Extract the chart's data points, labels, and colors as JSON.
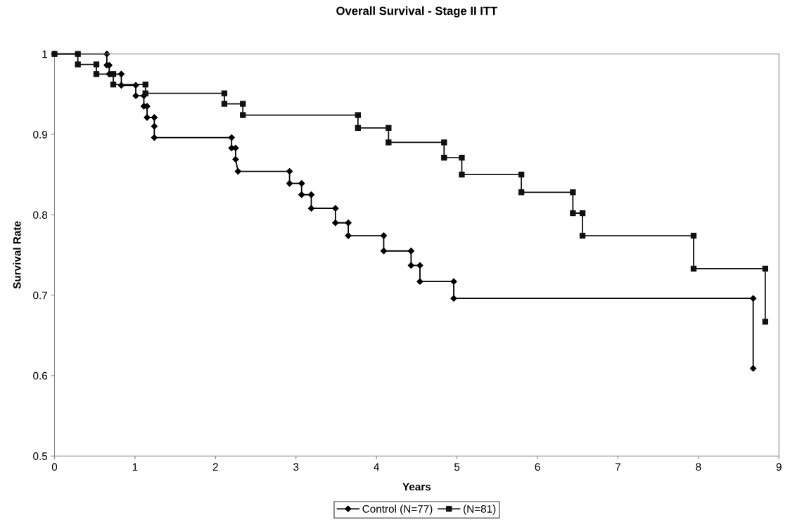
{
  "chart_data": {
    "type": "line",
    "title": "Overall Survival - Stage II ITT",
    "xlabel": "Years",
    "ylabel": "Survival Rate",
    "xlim": [
      0,
      9
    ],
    "xticks": [
      0,
      1,
      2,
      3,
      4,
      5,
      6,
      7,
      8,
      9
    ],
    "ylim": [
      0.5,
      1
    ],
    "yticks": [
      0.5,
      0.6,
      0.7,
      0.8,
      0.9,
      1
    ],
    "grid": false,
    "legend": "bottom",
    "line_style": "solid",
    "series": [
      {
        "name": "Control (N=77)",
        "color": "#000000",
        "marker": "diamond",
        "x": [
          0,
          0.65,
          0.65,
          0.68,
          0.68,
          0.83,
          0.83,
          1.01,
          1.01,
          1.11,
          1.11,
          1.15,
          1.15,
          1.24,
          1.24,
          1.24,
          2.2,
          2.2,
          2.25,
          2.25,
          2.28,
          2.92,
          2.92,
          3.07,
          3.07,
          3.19,
          3.19,
          3.49,
          3.49,
          3.65,
          3.65,
          4.09,
          4.09,
          4.43,
          4.43,
          4.54,
          4.54,
          4.96,
          4.96,
          8.68,
          8.68
        ],
        "values": [
          1,
          1,
          0.986,
          0.986,
          0.975,
          0.975,
          0.961,
          0.961,
          0.948,
          0.948,
          0.935,
          0.935,
          0.921,
          0.921,
          0.91,
          0.896,
          0.896,
          0.883,
          0.883,
          0.869,
          0.854,
          0.854,
          0.839,
          0.839,
          0.825,
          0.825,
          0.808,
          0.808,
          0.79,
          0.79,
          0.774,
          0.774,
          0.755,
          0.755,
          0.737,
          0.737,
          0.717,
          0.717,
          0.696,
          0.696,
          0.609
        ]
      },
      {
        "name": "(N=81)",
        "color": "#111111",
        "marker": "square",
        "x": [
          0,
          0.29,
          0.29,
          0.52,
          0.52,
          0.73,
          0.73,
          1.13,
          1.13,
          2.11,
          2.11,
          2.34,
          2.34,
          3.77,
          3.77,
          4.15,
          4.15,
          4.84,
          4.84,
          5.06,
          5.06,
          5.8,
          5.8,
          6.44,
          6.44,
          6.56,
          6.56,
          7.94,
          7.94,
          8.83,
          8.83
        ],
        "values": [
          1,
          1,
          0.987,
          0.987,
          0.975,
          0.975,
          0.962,
          0.962,
          0.951,
          0.951,
          0.938,
          0.938,
          0.924,
          0.924,
          0.908,
          0.908,
          0.89,
          0.89,
          0.871,
          0.871,
          0.85,
          0.85,
          0.828,
          0.828,
          0.802,
          0.802,
          0.774,
          0.774,
          0.733,
          0.733,
          0.667
        ]
      }
    ]
  }
}
